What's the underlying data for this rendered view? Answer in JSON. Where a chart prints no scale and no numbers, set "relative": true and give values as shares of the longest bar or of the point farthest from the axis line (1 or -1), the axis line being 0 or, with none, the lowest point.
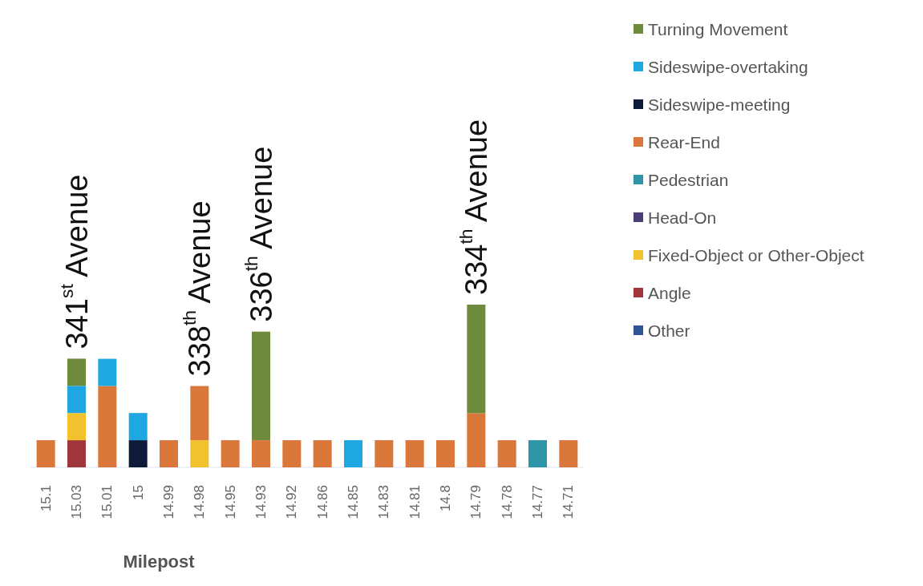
{
  "chart_data": {
    "type": "bar",
    "stacked": true,
    "relative": true,
    "xlabel": "Milepost",
    "legend": "top right",
    "categories": [
      "15.1",
      "15.03",
      "15.01",
      "15",
      "14.99",
      "14.98",
      "14.95",
      "14.93",
      "14.92",
      "14.86",
      "14.85",
      "14.83",
      "14.81",
      "14.8",
      "14.79",
      "14.78",
      "14.77",
      "14.71"
    ],
    "series": [
      {
        "name": "Other",
        "color": "#2f5597",
        "values": [
          0,
          0,
          0,
          0,
          0,
          0,
          0,
          0,
          0,
          0,
          0,
          0,
          0,
          0,
          0,
          0,
          0,
          0
        ]
      },
      {
        "name": "Angle",
        "color": "#a0353a",
        "values": [
          0,
          0.167,
          0,
          0,
          0,
          0,
          0,
          0,
          0,
          0,
          0,
          0,
          0,
          0,
          0,
          0,
          0,
          0
        ]
      },
      {
        "name": "Fixed-Object or Other-Object",
        "color": "#f2c12e",
        "values": [
          0,
          0.167,
          0,
          0,
          0,
          0.167,
          0,
          0,
          0,
          0,
          0,
          0,
          0,
          0,
          0,
          0,
          0,
          0
        ]
      },
      {
        "name": "Head-On",
        "color": "#4b3c7a",
        "values": [
          0,
          0,
          0,
          0,
          0,
          0,
          0,
          0,
          0,
          0,
          0,
          0,
          0,
          0,
          0,
          0,
          0,
          0
        ]
      },
      {
        "name": "Pedestrian",
        "color": "#2e95a8",
        "values": [
          0,
          0,
          0,
          0,
          0,
          0,
          0,
          0,
          0,
          0,
          0,
          0,
          0,
          0,
          0,
          0,
          0.167,
          0
        ]
      },
      {
        "name": "Rear-End",
        "color": "#d9783a",
        "values": [
          0.167,
          0,
          0.5,
          0,
          0.167,
          0.333,
          0.167,
          0.167,
          0.167,
          0.167,
          0,
          0.167,
          0.167,
          0.167,
          0.333,
          0.167,
          0,
          0.167
        ]
      },
      {
        "name": "Sideswipe-meeting",
        "color": "#0d1a3a",
        "values": [
          0,
          0,
          0,
          0.167,
          0,
          0,
          0,
          0,
          0,
          0,
          0,
          0,
          0,
          0,
          0,
          0,
          0,
          0
        ]
      },
      {
        "name": "Sideswipe-overtaking",
        "color": "#1ea7e1",
        "values": [
          0,
          0.167,
          0.167,
          0.167,
          0,
          0,
          0,
          0,
          0,
          0,
          0.167,
          0,
          0,
          0,
          0,
          0,
          0,
          0
        ]
      },
      {
        "name": "Turning Movement",
        "color": "#6e8b3d",
        "values": [
          0,
          0.167,
          0,
          0,
          0,
          0,
          0,
          0.667,
          0,
          0,
          0,
          0,
          0,
          0,
          0.667,
          0,
          0,
          0
        ]
      }
    ],
    "annotations": [
      "341$^{st}$ Avenue",
      "338$^{th}$ Avenue",
      "336$^{th}$ Avenue",
      "334$^{th}$ Avenue"
    ]
  }
}
